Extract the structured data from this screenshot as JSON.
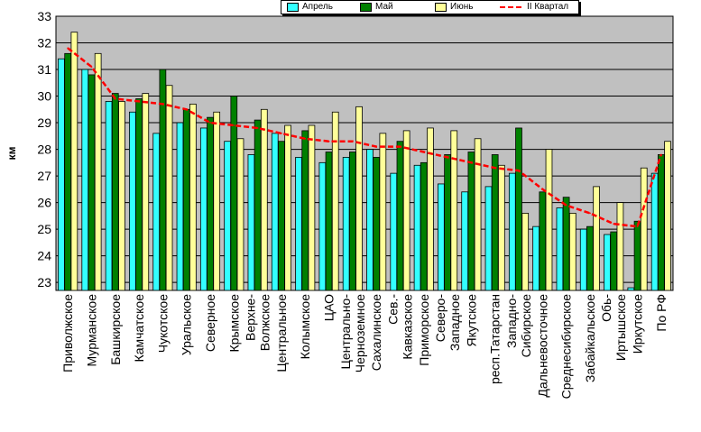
{
  "chart_data": {
    "type": "bar",
    "ylabel": "км",
    "ylim": [
      22.7,
      33
    ],
    "yticks": [
      23,
      24,
      25,
      26,
      27,
      28,
      29,
      30,
      31,
      32,
      33
    ],
    "grid": true,
    "legend_placement": "top",
    "categories": [
      "Приволжское",
      "Мурманское",
      "Башкирское",
      "Камчатское",
      "Чукотское",
      "Уральское",
      "Северное",
      "Крымское",
      "Верхне-Волжское",
      "Центральное",
      "Колымское",
      "ЦАО",
      "Центрально-Черноземное",
      "Сахалинское",
      "Сев.-Кавказское",
      "Приморское",
      "Северо-Западное",
      "Якутское",
      "респ.Татарстан",
      "Западно-Сибирское",
      "Дальневосточное",
      "Среднесибирское",
      "Забайкальское",
      "Обь-Иртышское",
      "Иркутское",
      "По РФ"
    ],
    "category_lines": [
      [
        "Приволжское"
      ],
      [
        "Мурманское"
      ],
      [
        "Башкирское"
      ],
      [
        "Камчатское"
      ],
      [
        "Чукотское"
      ],
      [
        "Уральское"
      ],
      [
        "Северное"
      ],
      [
        "Крымское"
      ],
      [
        "Верхне-",
        "Волжское"
      ],
      [
        "Центральное"
      ],
      [
        "Колымское"
      ],
      [
        "ЦАО"
      ],
      [
        "Центрально-",
        "Черноземное"
      ],
      [
        "Сахалинское"
      ],
      [
        "Сев.-",
        "Кавказское"
      ],
      [
        "Приморское"
      ],
      [
        "Северо-",
        "Западное"
      ],
      [
        "Якутское"
      ],
      [
        "респ.Татарстан"
      ],
      [
        "Западно-",
        "Сибирское"
      ],
      [
        "Дальневосточное"
      ],
      [
        "Среднесибирское"
      ],
      [
        "Забайкальское"
      ],
      [
        "Обь-",
        "Иртышское"
      ],
      [
        "Иркутское"
      ],
      [
        "По РФ"
      ]
    ],
    "series": [
      {
        "name": "Апрель",
        "color": "#33ffff",
        "values": [
          31.4,
          31.0,
          29.8,
          29.4,
          28.6,
          29.0,
          28.8,
          28.3,
          27.8,
          28.6,
          27.7,
          27.5,
          27.7,
          28.0,
          27.1,
          27.4,
          26.7,
          26.4,
          26.6,
          27.1,
          25.1,
          25.8,
          25.0,
          24.8,
          22.8,
          27.1
        ]
      },
      {
        "name": "Май",
        "color": "#008000",
        "values": [
          31.6,
          30.8,
          30.1,
          29.9,
          31.0,
          29.5,
          29.2,
          30.0,
          29.1,
          28.3,
          28.7,
          27.9,
          27.9,
          27.7,
          28.3,
          27.5,
          27.8,
          27.9,
          27.8,
          28.8,
          26.4,
          26.2,
          25.1,
          24.9,
          25.3,
          27.8
        ]
      },
      {
        "name": "Июнь",
        "color": "#ffff99",
        "values": [
          32.4,
          31.6,
          29.8,
          30.1,
          30.4,
          29.7,
          29.4,
          28.4,
          29.5,
          28.9,
          28.9,
          29.4,
          29.6,
          28.6,
          28.7,
          28.8,
          28.7,
          28.4,
          27.4,
          25.6,
          28.0,
          25.6,
          26.6,
          26.0,
          27.3,
          28.3
        ]
      },
      {
        "name": "II Квартал",
        "type": "line",
        "color": "#ff0000",
        "style": "dashed",
        "values": [
          31.8,
          31.1,
          29.9,
          29.8,
          29.7,
          29.5,
          29.0,
          28.9,
          28.8,
          28.6,
          28.4,
          28.3,
          28.3,
          28.1,
          28.1,
          27.9,
          27.7,
          27.5,
          27.3,
          27.2,
          26.5,
          25.9,
          25.6,
          25.2,
          25.1,
          27.8
        ]
      }
    ]
  },
  "legend": {
    "items": [
      {
        "label": "Апрель",
        "kind": "swatch",
        "color": "#33ffff"
      },
      {
        "label": "Май",
        "kind": "swatch",
        "color": "#008000"
      },
      {
        "label": "Июнь",
        "kind": "swatch",
        "color": "#ffff99"
      },
      {
        "label": "II Квартал",
        "kind": "line",
        "color": "#ff0000"
      }
    ]
  },
  "colors": {
    "plot_background": "#c0c0c0",
    "gridline": "#000000"
  }
}
